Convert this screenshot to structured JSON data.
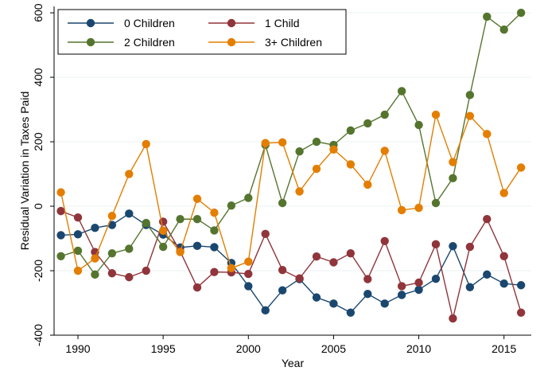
{
  "chart_data": {
    "type": "line",
    "title": "",
    "xlabel": "Year",
    "ylabel": "Residual Variation in Taxes Paid",
    "xlim": [
      1988.6,
      2016.6
    ],
    "ylim": [
      -400,
      620
    ],
    "xticks": [
      1990,
      1995,
      2000,
      2005,
      2010,
      2015
    ],
    "yticks": [
      -400,
      -200,
      0,
      200,
      400,
      600
    ],
    "grid": "horizontal",
    "legend_position": "top-left",
    "x": [
      1989,
      1990,
      1991,
      1992,
      1993,
      1994,
      1995,
      1996,
      1997,
      1998,
      1999,
      2000,
      2001,
      2002,
      2003,
      2004,
      2005,
      2006,
      2007,
      2008,
      2009,
      2010,
      2011,
      2012,
      2013,
      2014,
      2015,
      2016
    ],
    "series": [
      {
        "name": "0 Children",
        "color": "#1a476f",
        "values": [
          -90,
          -87,
          -67,
          -58,
          -23,
          -58,
          -88,
          -128,
          -123,
          -127,
          -176,
          -248,
          -323,
          -261,
          -226,
          -283,
          -302,
          -330,
          -272,
          -302,
          -275,
          -259,
          -225,
          -124,
          -251,
          -212,
          -240,
          -245
        ]
      },
      {
        "name": "1 Child",
        "color": "#90353b",
        "values": [
          -15,
          -35,
          -142,
          -208,
          -220,
          -200,
          -48,
          -140,
          -252,
          -204,
          -205,
          -210,
          -86,
          -198,
          -224,
          -156,
          -174,
          -146,
          -226,
          -108,
          -248,
          -237,
          -118,
          -348,
          -126,
          -40,
          -155,
          -330
        ]
      },
      {
        "name": "2 Children",
        "color": "#55752f",
        "values": [
          -155,
          -138,
          -212,
          -146,
          -132,
          -52,
          -126,
          -40,
          -40,
          -75,
          2,
          26,
          190,
          10,
          170,
          200,
          190,
          235,
          257,
          284,
          357,
          252,
          10,
          87,
          345,
          588,
          548,
          600
        ]
      },
      {
        "name": "3+ Children",
        "color": "#e37e00",
        "values": [
          43,
          -200,
          -162,
          -30,
          100,
          193,
          -76,
          -142,
          23,
          -20,
          -192,
          -172,
          196,
          198,
          46,
          116,
          176,
          130,
          67,
          172,
          -12,
          -5,
          284,
          137,
          280,
          224,
          41,
          120
        ]
      }
    ]
  }
}
